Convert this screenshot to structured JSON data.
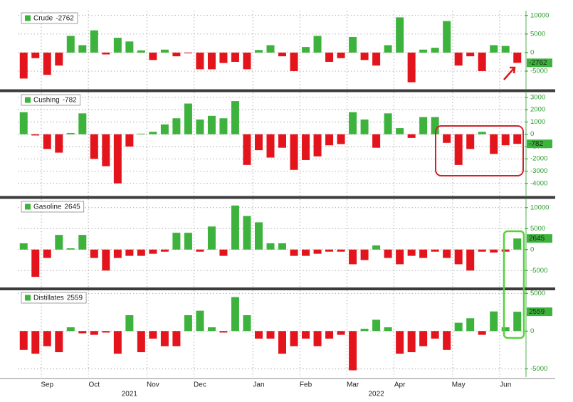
{
  "chart_data": [
    {
      "type": "bar",
      "color_positive": "#3db33d",
      "color_negative": "#e3141c",
      "series": [
        {
          "name": "Crude",
          "values": [
            -7000,
            -1500,
            -6000,
            -3500,
            4500,
            2000,
            6000,
            -500,
            4000,
            3000,
            600,
            -2000,
            800,
            -1000,
            -200,
            -4500,
            -4500,
            -2800,
            -2500,
            -4500,
            700,
            2000,
            -1000,
            -5000,
            1500,
            4500,
            -2500,
            -1500,
            4200,
            -2000,
            -3500,
            2000,
            9500,
            -8000,
            800,
            1300,
            8500,
            -3500,
            -1000,
            -5000,
            2000,
            1800,
            -2762
          ]
        }
      ],
      "ylim": [
        -9800,
        11300
      ],
      "yticks": [
        10000,
        5000,
        0,
        -5000
      ],
      "grid": true
    },
    {
      "type": "bar",
      "color_positive": "#3db33d",
      "color_negative": "#e3141c",
      "series": [
        {
          "name": "Cushing",
          "values": [
            1800,
            -100,
            -1200,
            -1500,
            100,
            1700,
            -2000,
            -2600,
            -4000,
            -1000,
            50,
            200,
            800,
            1300,
            2500,
            1200,
            1500,
            1300,
            2700,
            -2500,
            -1300,
            -1900,
            -1100,
            -2900,
            -2100,
            -1800,
            -900,
            -800,
            1800,
            1200,
            -1100,
            1700,
            500,
            -300,
            1400,
            1400,
            -700,
            -2500,
            -1200,
            200,
            -1600,
            -900,
            -782
          ]
        }
      ],
      "ylim": [
        -5000,
        3400
      ],
      "yticks": [
        3000,
        2000,
        1000,
        0,
        -1000,
        -2000,
        -3000,
        -4000
      ],
      "grid": true
    },
    {
      "type": "bar",
      "color_positive": "#3db33d",
      "color_negative": "#e3141c",
      "series": [
        {
          "name": "Gasoline",
          "values": [
            1500,
            -6500,
            -2000,
            3500,
            300,
            3500,
            -2000,
            -5000,
            -2000,
            -1500,
            -1500,
            -1000,
            -500,
            4000,
            4000,
            -500,
            5500,
            -1500,
            10500,
            8000,
            6500,
            1500,
            1500,
            -1500,
            -1500,
            -1000,
            -500,
            -500,
            -3500,
            -2500,
            1000,
            -2000,
            -3500,
            -1500,
            -2000,
            -500,
            -2000,
            -3500,
            -5000,
            -500,
            -700,
            -500,
            2645
          ]
        }
      ],
      "ylim": [
        -9200,
        12000
      ],
      "yticks": [
        10000,
        5000,
        0,
        -5000
      ],
      "grid": true
    },
    {
      "type": "bar",
      "color_positive": "#3db33d",
      "color_negative": "#e3141c",
      "series": [
        {
          "name": "Distillates",
          "values": [
            -2500,
            -3000,
            -2000,
            -2800,
            500,
            -300,
            -500,
            -200,
            -3000,
            2100,
            -2800,
            -1000,
            -2000,
            -2000,
            2100,
            2700,
            500,
            -200,
            4500,
            2100,
            -1000,
            -1000,
            -3000,
            -2000,
            -1000,
            -2000,
            -1000,
            -500,
            -5200,
            300,
            1500,
            500,
            -3000,
            -2800,
            -2000,
            -1000,
            -2500,
            1100,
            1700,
            -500,
            2600,
            500,
            2559
          ]
        }
      ],
      "ylim": [
        -6100,
        5400
      ],
      "yticks": [
        5000,
        0,
        -5000
      ],
      "grid": true,
      "categories": [
        null,
        null,
        "Sep",
        null,
        null,
        null,
        "Oct",
        null,
        null,
        null,
        null,
        "Nov",
        null,
        null,
        null,
        "Dec",
        null,
        null,
        null,
        null,
        "Jan",
        null,
        null,
        null,
        "Feb",
        null,
        null,
        null,
        "Mar",
        null,
        null,
        null,
        "Apr",
        null,
        null,
        null,
        null,
        "May",
        null,
        null,
        null,
        "Jun",
        null
      ],
      "years": [
        null,
        null,
        null,
        null,
        null,
        null,
        null,
        null,
        null,
        "2021",
        null,
        null,
        null,
        null,
        null,
        null,
        null,
        null,
        null,
        null,
        null,
        null,
        null,
        null,
        null,
        null,
        null,
        null,
        null,
        null,
        "2022",
        null,
        null,
        null,
        null,
        null,
        null,
        null,
        null,
        null,
        null,
        null,
        null
      ]
    }
  ]
}
